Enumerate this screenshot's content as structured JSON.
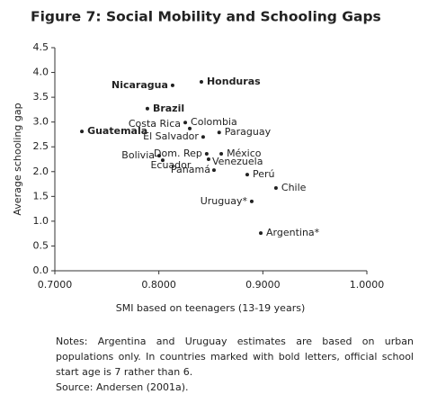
{
  "chart_data": {
    "type": "scatter",
    "title": "Figure 7: Social Mobility and Schooling Gaps",
    "x_label": "SMI based on teenagers (13-19 years)",
    "y_label": "Average schooling gap",
    "points": [
      {
        "label": "Nicaragua",
        "x": 0.8132,
        "y": 3.74,
        "bold": true
      },
      {
        "label": "Honduras",
        "x": 0.8409,
        "y": 3.81,
        "bold": true
      },
      {
        "label": "Brazil",
        "x": 0.789,
        "y": 3.27,
        "bold": true
      },
      {
        "label": "Guatemala",
        "x": 0.726,
        "y": 2.81,
        "bold": true
      },
      {
        "label": "Colombia",
        "x": 0.8254,
        "y": 2.99,
        "bold": false
      },
      {
        "label": "Costa Rica",
        "x": 0.8297,
        "y": 2.87,
        "bold": false
      },
      {
        "label": "El Salvador",
        "x": 0.8426,
        "y": 2.7,
        "bold": false
      },
      {
        "label": "Paraguay",
        "x": 0.858,
        "y": 2.79,
        "bold": false
      },
      {
        "label": "Bolivia",
        "x": 0.8003,
        "y": 2.32,
        "bold": false
      },
      {
        "label": "Ecuador",
        "x": 0.8037,
        "y": 2.23,
        "bold": false
      },
      {
        "label": "Dom. Rep",
        "x": 0.846,
        "y": 2.36,
        "bold": false
      },
      {
        "label": "México",
        "x": 0.86,
        "y": 2.36,
        "bold": false
      },
      {
        "label": "Venezuela",
        "x": 0.8478,
        "y": 2.25,
        "bold": false
      },
      {
        "label": "Panamá",
        "x": 0.853,
        "y": 2.03,
        "bold": false
      },
      {
        "label": "Perú",
        "x": 0.885,
        "y": 1.94,
        "bold": false
      },
      {
        "label": "Chile",
        "x": 0.9126,
        "y": 1.67,
        "bold": false
      },
      {
        "label": "Uruguay*",
        "x": 0.8893,
        "y": 1.4,
        "bold": false
      },
      {
        "label": "Argentina*",
        "x": 0.898,
        "y": 0.76,
        "bold": false
      }
    ],
    "color": "#222222",
    "xlim": [
      0.7,
      1.0
    ],
    "xticks": [
      {
        "value": 0.7,
        "label": "0.7000"
      },
      {
        "value": 0.8,
        "label": "0.8000"
      },
      {
        "value": 0.9,
        "label": "0.9000"
      },
      {
        "value": 1.0,
        "label": "1.0000"
      }
    ],
    "ylim": [
      0,
      4.5
    ],
    "yticks": [
      {
        "value": 0,
        "label": "0.0"
      },
      0.5,
      {
        "value": 1,
        "label": "1.0"
      },
      1.5,
      {
        "value": 2,
        "label": "2.0"
      },
      2.5,
      {
        "value": 3,
        "label": "3.0"
      },
      3.5,
      {
        "value": 4,
        "label": "4.0"
      },
      4.5
    ],
    "grid": false
  },
  "notes": {
    "text": "Notes: Argentina and Uruguay estimates are based on urban populations only. In countries marked with bold letters, official school start age is 7 rather than 6.",
    "source": "Source: Andersen (2001a)."
  }
}
